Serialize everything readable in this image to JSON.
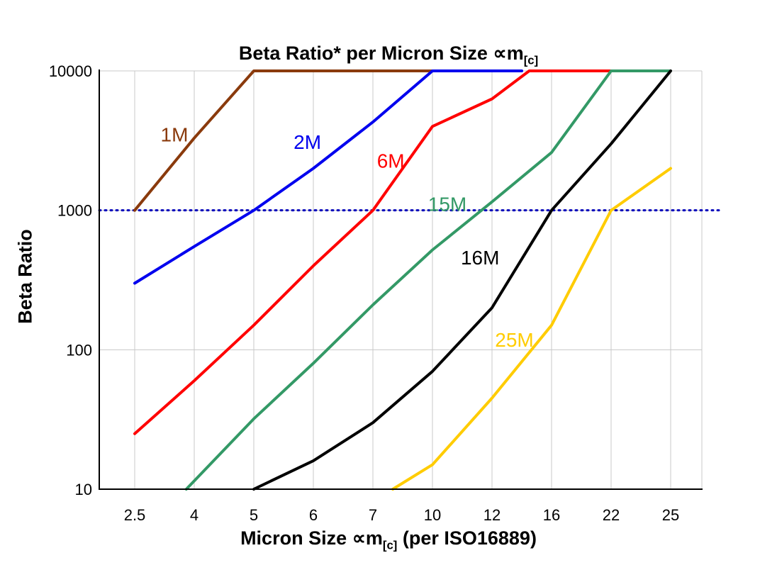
{
  "title": {
    "prefix": "Beta Ratio* per Micron Size ",
    "symbol": "∝m",
    "subscript": "[c]"
  },
  "axes": {
    "x": {
      "prefix": "Micron Size ",
      "symbol": "∝m",
      "subscript": "[c]",
      "suffix": " (per ISO16889)"
    },
    "y": {
      "label": "Beta Ratio"
    }
  },
  "chart_data": {
    "type": "line",
    "x_values": [
      2.5,
      4,
      5,
      6,
      7,
      10,
      12,
      16,
      22,
      25
    ],
    "x_tick_labels": [
      "2.5",
      "4",
      "5",
      "6",
      "7",
      "10",
      "12",
      "16",
      "22",
      "25"
    ],
    "y_scale": "log",
    "y_ticks": [
      10,
      100,
      1000,
      10000
    ],
    "y_tick_labels": [
      "10",
      "100",
      "1000",
      "10000"
    ],
    "ylim": [
      10,
      10000
    ],
    "grid": true,
    "grid_color": "#c8c8c8",
    "reference_line": {
      "value": 1000,
      "color": "#0000bb",
      "style": "dotted"
    },
    "series": [
      {
        "name": "1M",
        "color": "#8a3a0c",
        "points": [
          [
            2.5,
            1000
          ],
          [
            4,
            3300
          ],
          [
            5,
            10000
          ],
          [
            10,
            10000
          ]
        ]
      },
      {
        "name": "2M",
        "color": "#0000ee",
        "points": [
          [
            2.5,
            300
          ],
          [
            4,
            550
          ],
          [
            5,
            1000
          ],
          [
            6,
            2000
          ],
          [
            7,
            4300
          ],
          [
            10,
            10000
          ],
          [
            14,
            10000
          ]
        ]
      },
      {
        "name": "6M",
        "color": "#ff0000",
        "points": [
          [
            2.5,
            25
          ],
          [
            4,
            60
          ],
          [
            5,
            150
          ],
          [
            6,
            400
          ],
          [
            7,
            1000
          ],
          [
            10,
            4000
          ],
          [
            12,
            6300
          ],
          [
            14.5,
            10000
          ],
          [
            22,
            10000
          ]
        ]
      },
      {
        "name": "15M",
        "color": "#339966",
        "points": [
          [
            3.8,
            10
          ],
          [
            5,
            32
          ],
          [
            6,
            80
          ],
          [
            7,
            210
          ],
          [
            10,
            520
          ],
          [
            12,
            1150
          ],
          [
            16,
            2600
          ],
          [
            22,
            10000
          ],
          [
            25,
            10000
          ]
        ]
      },
      {
        "name": "16M",
        "color": "#000000",
        "points": [
          [
            5,
            10
          ],
          [
            6,
            16
          ],
          [
            7,
            30
          ],
          [
            10,
            70
          ],
          [
            12,
            200
          ],
          [
            16,
            1000
          ],
          [
            22,
            3000
          ],
          [
            25,
            10000
          ]
        ]
      },
      {
        "name": "25M",
        "color": "#ffcc00",
        "points": [
          [
            8,
            10
          ],
          [
            10,
            15
          ],
          [
            12,
            45
          ],
          [
            16,
            150
          ],
          [
            22,
            1000
          ],
          [
            25,
            2000
          ]
        ]
      }
    ],
    "labels": [
      {
        "text": "1M",
        "x": 3.5,
        "y": 3400,
        "color": "#8a3a0c"
      },
      {
        "text": "2M",
        "x": 5.9,
        "y": 3000,
        "color": "#0000ee"
      },
      {
        "text": "6M",
        "x": 7.9,
        "y": 2200,
        "color": "#ff0000"
      },
      {
        "text": "15M",
        "x": 10.5,
        "y": 1080,
        "color": "#339966"
      },
      {
        "text": "16M",
        "x": 11.6,
        "y": 445,
        "color": "#000000"
      },
      {
        "text": "25M",
        "x": 13.5,
        "y": 115,
        "color": "#ffcc00"
      }
    ]
  }
}
